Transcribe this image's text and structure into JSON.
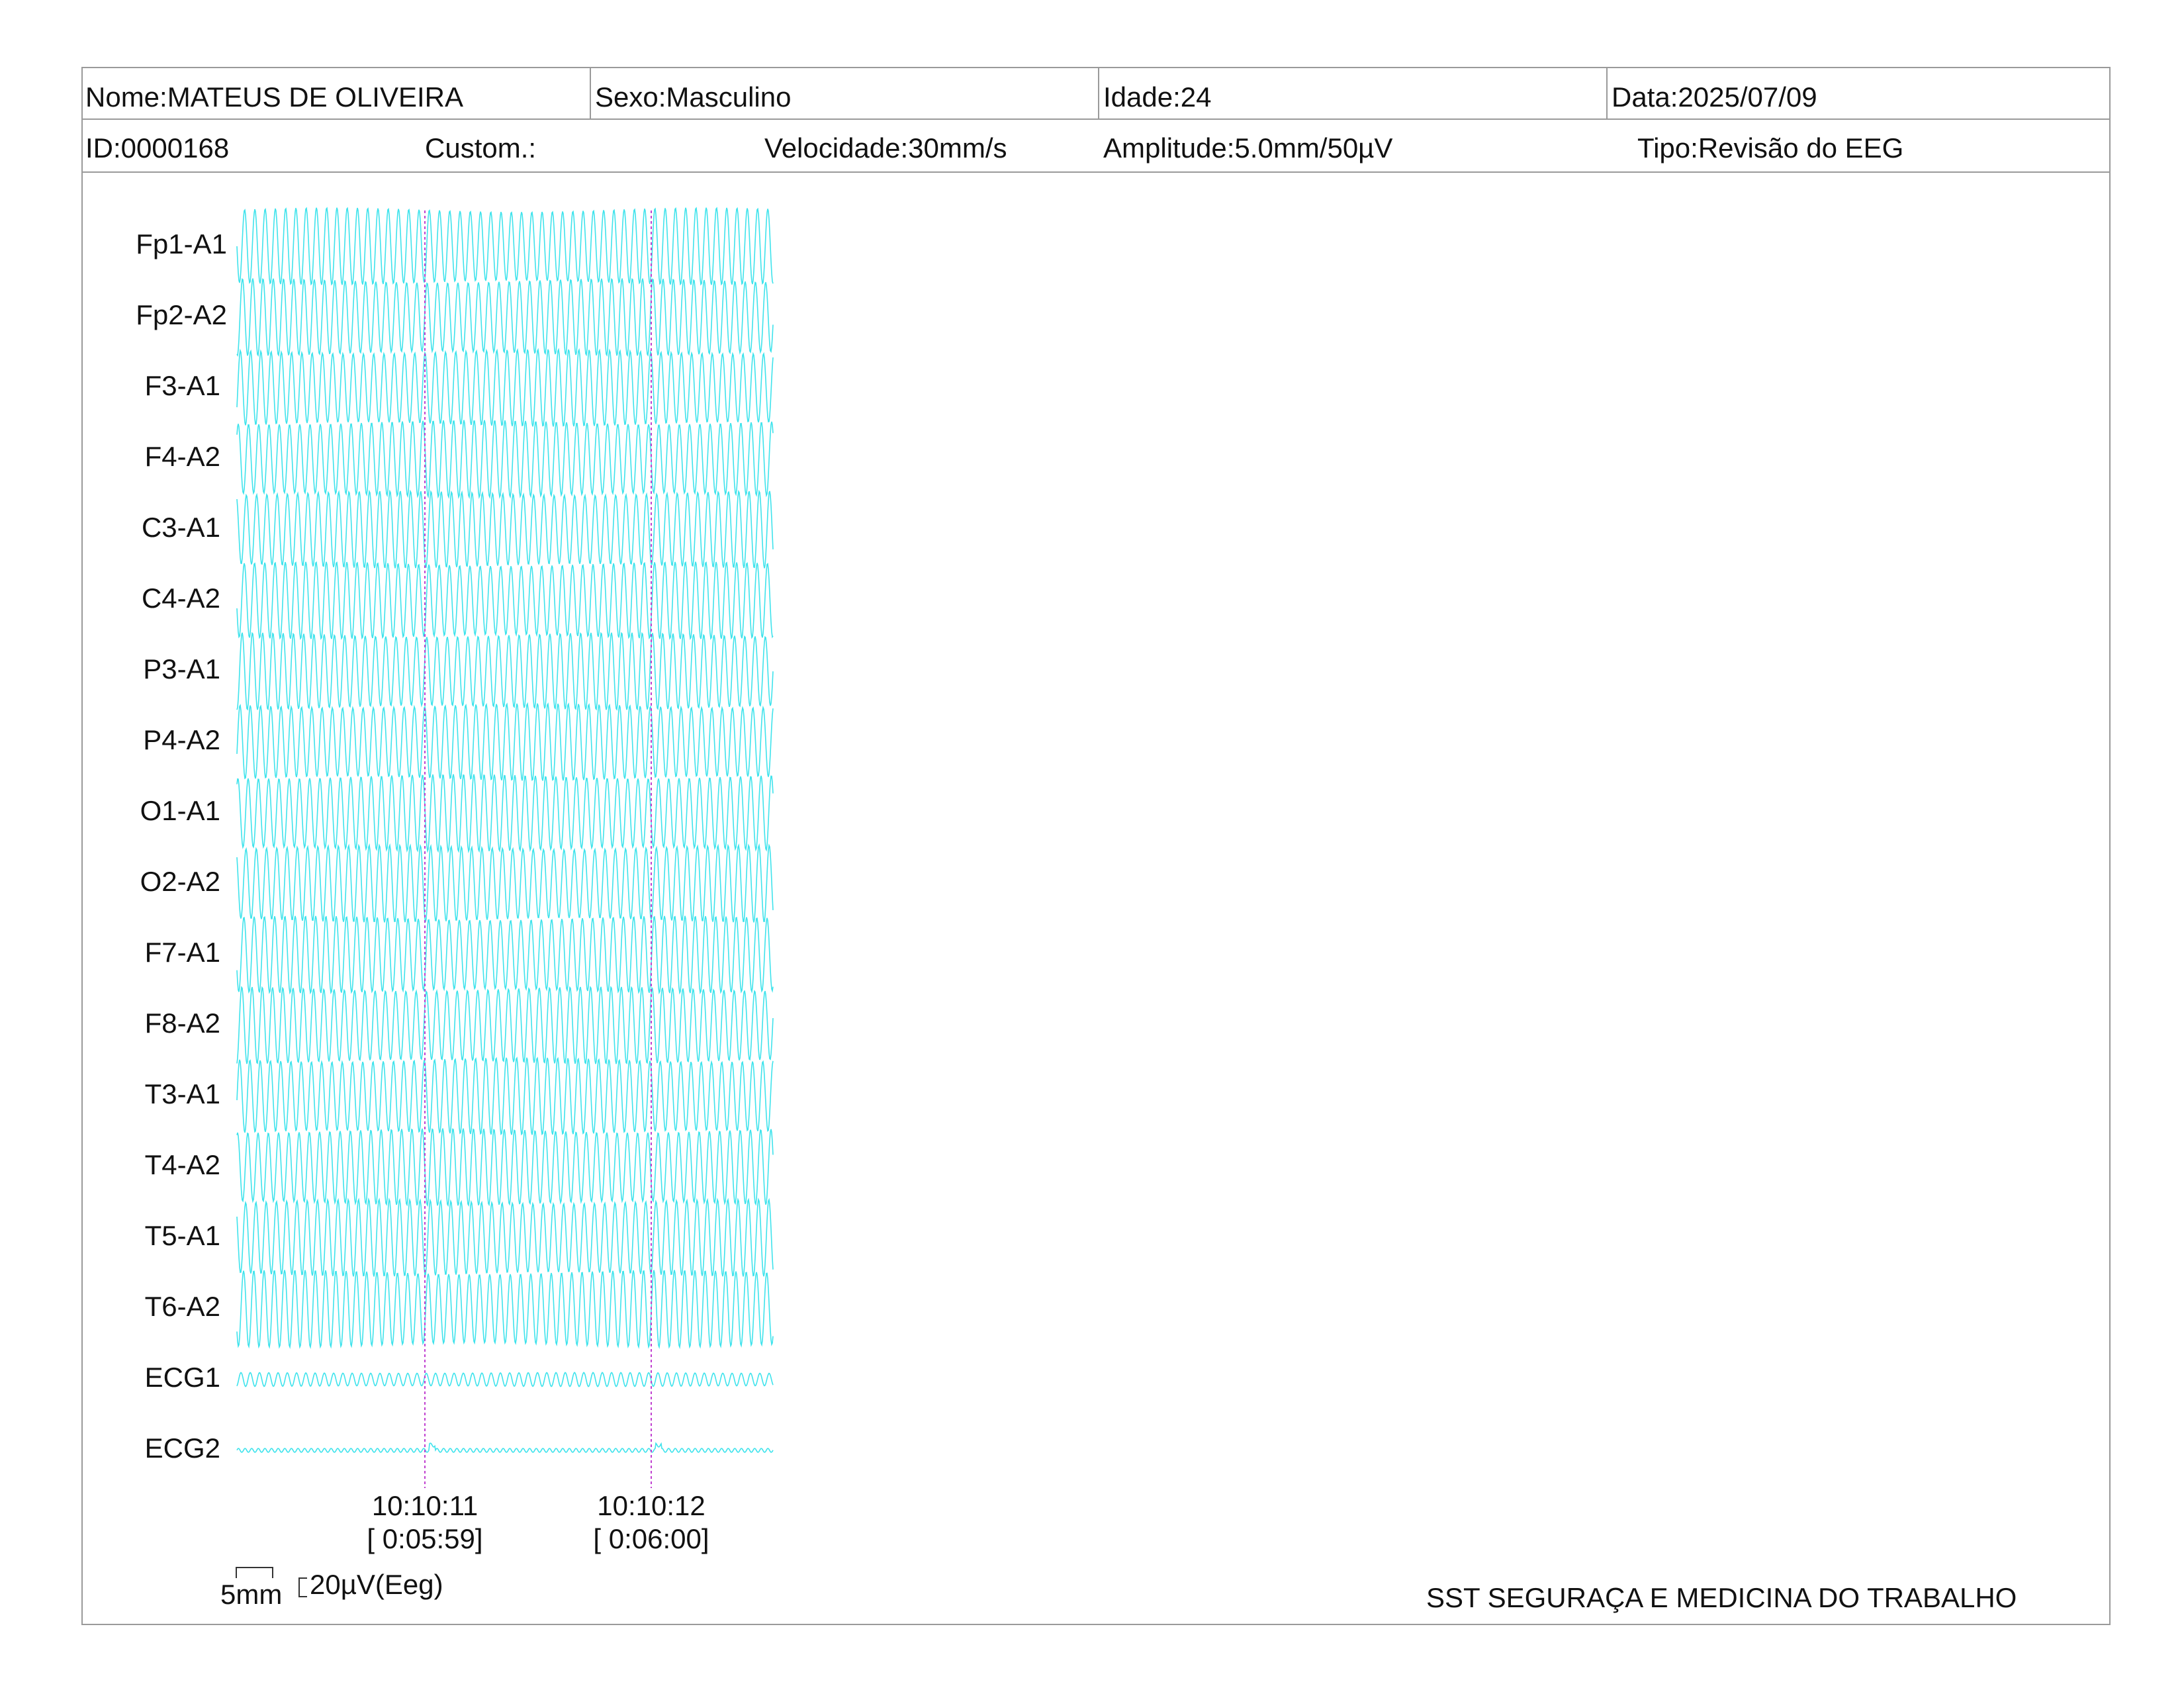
{
  "header": {
    "nome": "Nome:MATEUS DE OLIVEIRA",
    "sexo": "Sexo:Masculino",
    "idade": "Idade:24",
    "data": "Data:2025/07/09",
    "id": "ID:0000168",
    "custom": "Custom.:",
    "velocidade": "Velocidade:30mm/s",
    "amplitude": "Amplitude:5.0mm/50µV",
    "tipo": "Tipo:Revisão do EEG"
  },
  "channels": [
    "Fp1-A1",
    "Fp2-A2",
    "F3-A1",
    "F4-A2",
    "C3-A1",
    "C4-A2",
    "P3-A1",
    "P4-A2",
    "O1-A1",
    "O2-A2",
    "F7-A1",
    "F8-A2",
    "T3-A1",
    "T4-A2",
    "T5-A1",
    "T6-A2",
    "ECG1",
    "ECG2"
  ],
  "markers": [
    {
      "time": "10:10:11",
      "elapsed": "[ 0:05:59]"
    },
    {
      "time": "10:10:12",
      "elapsed": "[ 0:06:00]"
    }
  ],
  "scale": {
    "time": "5mm",
    "amplitude": "20µV(Eeg)"
  },
  "colors": {
    "trace": "#3fe3ec",
    "marker": "#c040d0"
  },
  "footer": {
    "company": "SST SEGURAÇA E MEDICINA DO TRABALHO"
  }
}
